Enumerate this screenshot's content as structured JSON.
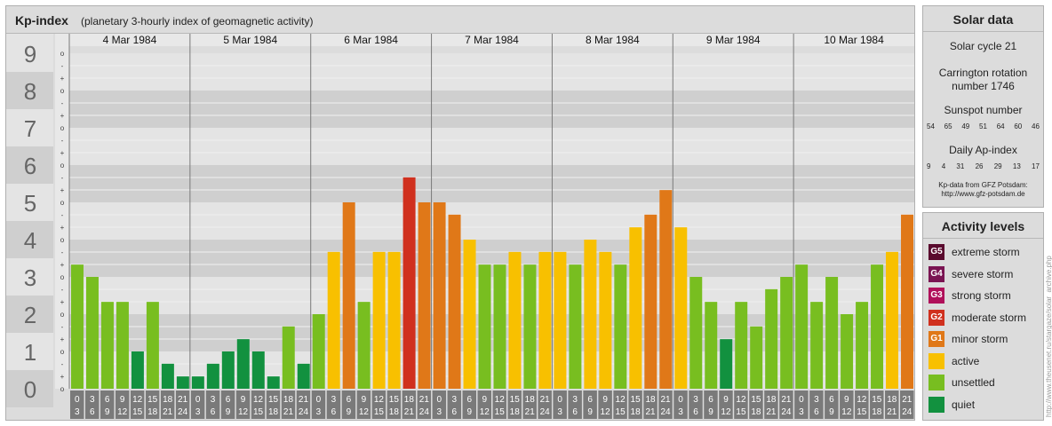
{
  "header": {
    "title": "Kp-index",
    "subtitle": "(planetary 3-hourly index of geomagnetic activity)"
  },
  "solar": {
    "title": "Solar data",
    "cycle": "Solar cycle 21",
    "carrington_line1": "Carrington rotation",
    "carrington_line2": "number 1746",
    "sunspot_label": "Sunspot number",
    "sunspot_values": [
      "54",
      "65",
      "49",
      "51",
      "64",
      "60",
      "46"
    ],
    "ap_label": "Daily Ap-index",
    "ap_values": [
      "9",
      "4",
      "31",
      "26",
      "29",
      "13",
      "17"
    ],
    "source_line1": "Kp-data from GFZ Potsdam:",
    "source_line2": "http://www.gfz-potsdam.de"
  },
  "levels": {
    "title": "Activity levels",
    "items": [
      {
        "badge": "G5",
        "label": "extreme storm",
        "color": "#5a0a2e"
      },
      {
        "badge": "G4",
        "label": "severe storm",
        "color": "#7a1452"
      },
      {
        "badge": "G3",
        "label": "strong storm",
        "color": "#b0105a"
      },
      {
        "badge": "G2",
        "label": "moderate storm",
        "color": "#d0301e"
      },
      {
        "badge": "G1",
        "label": "minor storm",
        "color": "#e07818"
      },
      {
        "badge": "",
        "label": "active",
        "color": "#f8c000"
      },
      {
        "badge": "",
        "label": "unsettled",
        "color": "#78be20"
      },
      {
        "badge": "",
        "label": "quiet",
        "color": "#12913f"
      }
    ]
  },
  "credit": "http://www.theusenet.ru/stargaze/solar_archive.php",
  "chart_data": {
    "type": "bar",
    "title": "Kp-index",
    "ylabel": "",
    "ylim": [
      0,
      9
    ],
    "y_ticks": [
      "0",
      "1",
      "2",
      "3",
      "4",
      "5",
      "6",
      "7",
      "8",
      "9"
    ],
    "minor_marks": [
      "o",
      "+",
      "-"
    ],
    "days": [
      "4 Mar 1984",
      "5 Mar 1984",
      "6 Mar 1984",
      "7 Mar 1984",
      "8 Mar 1984",
      "9 Mar 1984",
      "10 Mar 1984"
    ],
    "hour_labels": [
      [
        "0",
        "3"
      ],
      [
        "3",
        "6"
      ],
      [
        "6",
        "9"
      ],
      [
        "9",
        "12"
      ],
      [
        "12",
        "15"
      ],
      [
        "15",
        "18"
      ],
      [
        "18",
        "21"
      ],
      [
        "21",
        "24"
      ]
    ],
    "values": [
      3.33,
      3.0,
      2.33,
      2.33,
      1.0,
      2.33,
      0.67,
      0.33,
      0.33,
      0.67,
      1.0,
      1.33,
      1.0,
      0.33,
      1.67,
      0.67,
      2.0,
      3.67,
      5.0,
      2.33,
      3.67,
      3.67,
      5.67,
      5.0,
      5.0,
      4.67,
      4.0,
      3.33,
      3.33,
      3.67,
      3.33,
      3.67,
      3.67,
      3.33,
      4.0,
      3.67,
      3.33,
      4.33,
      4.67,
      5.33,
      4.33,
      3.0,
      2.33,
      1.33,
      2.33,
      1.67,
      2.67,
      3.0,
      3.33,
      2.33,
      3.0,
      2.0,
      2.33,
      3.33,
      3.67,
      4.67
    ],
    "level_colors": {
      "quiet": "#12913f",
      "unsettled": "#78be20",
      "active": "#f8c000",
      "G1": "#e07818",
      "G2": "#d0301e"
    },
    "grid": true
  }
}
